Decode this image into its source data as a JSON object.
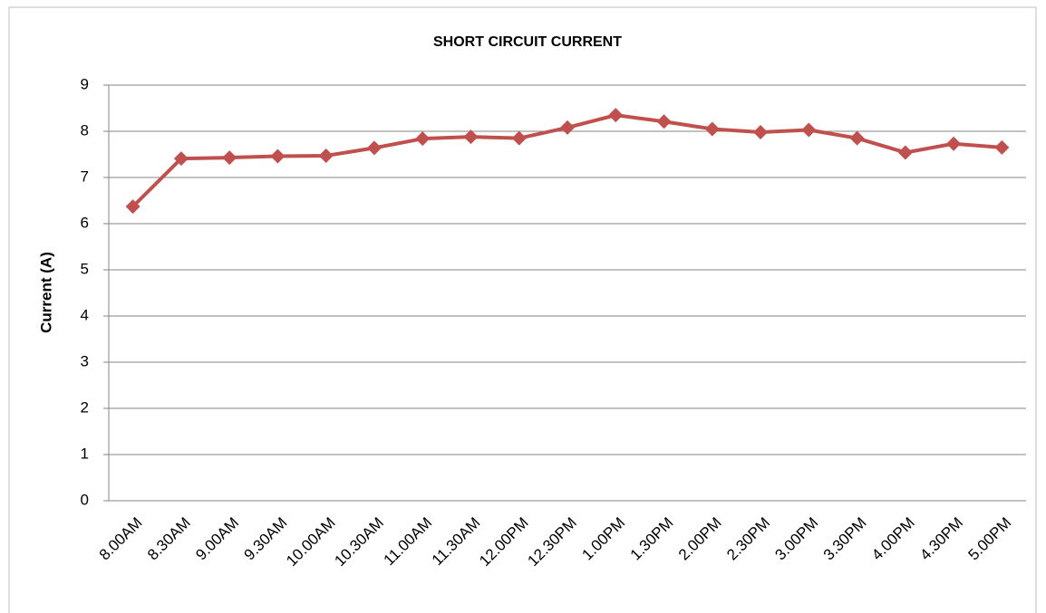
{
  "chart_data": {
    "type": "line",
    "title": "SHORT CIRCUIT CURRENT",
    "y_label": "Current (A)",
    "categories": [
      "8.00AM",
      "8.30AM",
      "9.00AM",
      "9.30AM",
      "10.00AM",
      "10.30AM",
      "11.00AM",
      "11.30AM",
      "12.00PM",
      "12.30PM",
      "1.00PM",
      "1.30PM",
      "2.00PM",
      "2.30PM",
      "3.00PM",
      "3.30PM",
      "4.00PM",
      "4.30PM",
      "5.00PM"
    ],
    "values": [
      6.37,
      7.41,
      7.43,
      7.46,
      7.47,
      7.64,
      7.84,
      7.88,
      7.85,
      8.08,
      8.35,
      8.21,
      8.05,
      7.98,
      8.03,
      7.85,
      7.54,
      7.73,
      7.65
    ],
    "color": "#c0504d",
    "ylim": [
      0,
      9
    ],
    "yticks": [
      0,
      1,
      2,
      3,
      4,
      5,
      6,
      7,
      8,
      9
    ],
    "grid": true
  }
}
